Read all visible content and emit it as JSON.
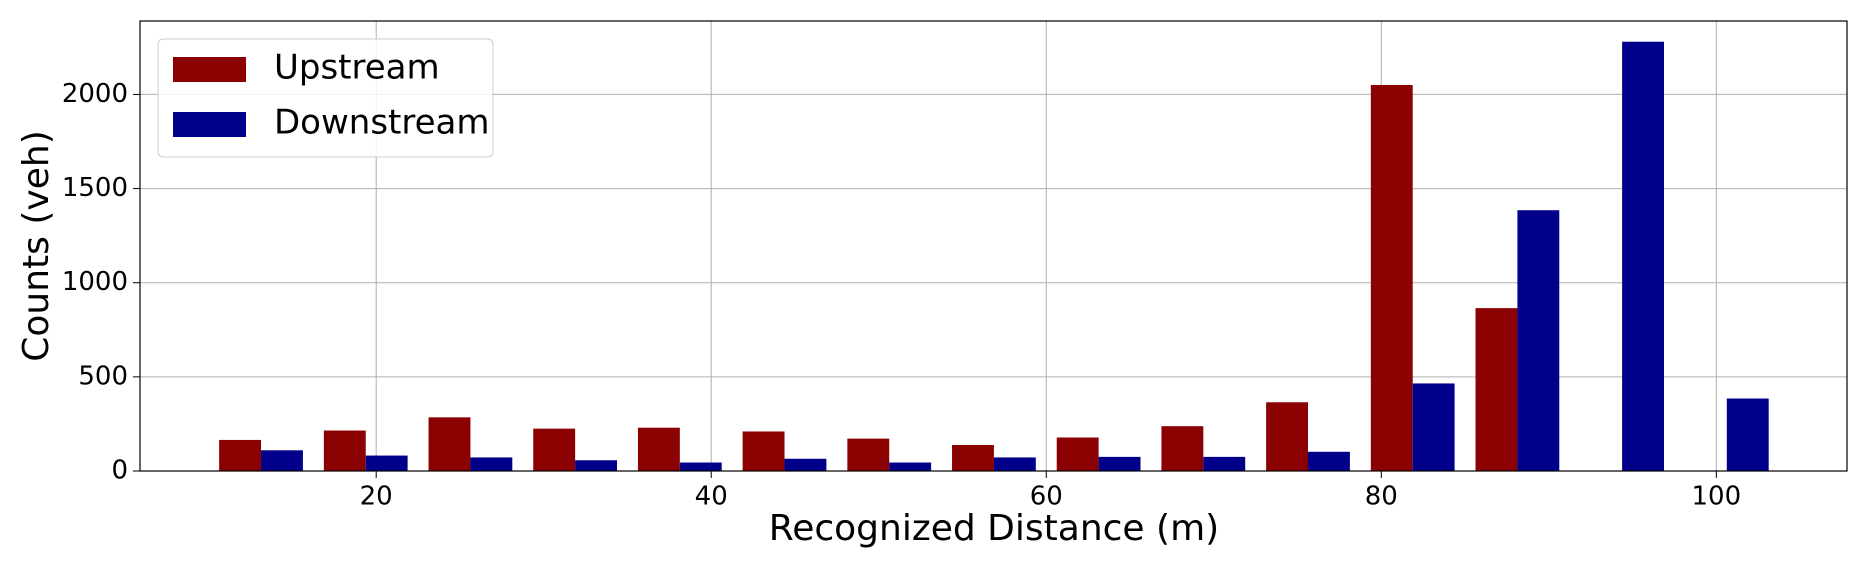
{
  "chart_data": {
    "type": "histogram",
    "xlabel": "Recognized Distance (m)",
    "ylabel": "Counts (veh)",
    "bins": [
      10,
      16.25,
      22.5,
      28.75,
      35,
      41.25,
      47.5,
      53.75,
      60,
      66.25,
      72.5,
      78.75,
      85,
      91.25,
      97.5,
      103.75
    ],
    "series": [
      {
        "name": "Upstream",
        "color": "#8b0000",
        "values": [
          165,
          215,
          285,
          225,
          230,
          210,
          172,
          138,
          178,
          238,
          365,
          2050,
          865,
          0,
          0
        ]
      },
      {
        "name": "Downstream",
        "color": "#00008b",
        "values": [
          110,
          82,
          72,
          57,
          45,
          65,
          45,
          72,
          75,
          75,
          102,
          465,
          1385,
          2280,
          385
        ]
      }
    ],
    "xlim": [
      5.9,
      107.8
    ],
    "xticks": [
      20,
      40,
      60,
      80,
      100
    ],
    "ylim": [
      0,
      2390
    ],
    "yticks": [
      0,
      500,
      1000,
      1500,
      2000
    ],
    "grid": true,
    "legend": "upper left"
  }
}
